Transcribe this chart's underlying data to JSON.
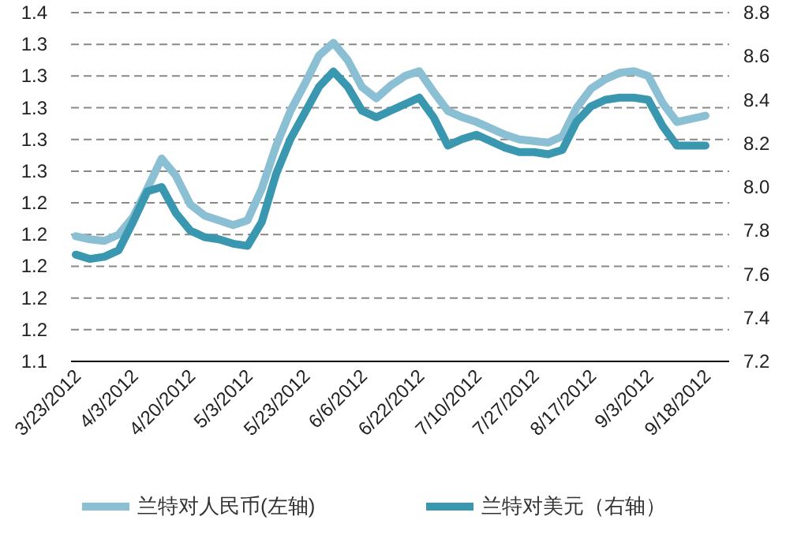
{
  "chart_data": {
    "type": "line",
    "categories": [
      "3/23/2012",
      null,
      null,
      null,
      "4/3/2012",
      null,
      null,
      null,
      "4/20/2012",
      null,
      null,
      null,
      "5/3/2012",
      null,
      null,
      null,
      "5/23/2012",
      null,
      null,
      null,
      "6/6/2012",
      null,
      null,
      null,
      "6/22/2012",
      null,
      null,
      null,
      "7/10/2012",
      null,
      null,
      null,
      "7/27/2012",
      null,
      null,
      null,
      "8/17/2012",
      null,
      null,
      null,
      "9/3/2012",
      null,
      null,
      null,
      "9/18/2012"
    ],
    "series": [
      {
        "name": "兰特对人民币(左轴)",
        "color": "#8bbfd3",
        "values": [
          1.219,
          1.217,
          1.216,
          1.22,
          1.231,
          1.249,
          1.268,
          1.257,
          1.239,
          1.232,
          1.229,
          1.226,
          1.229,
          1.249,
          1.276,
          1.298,
          1.315,
          1.333,
          1.341,
          1.33,
          1.313,
          1.306,
          1.314,
          1.32,
          1.323,
          1.31,
          1.298,
          1.294,
          1.291,
          1.287,
          1.283,
          1.28,
          1.279,
          1.278,
          1.282,
          1.3,
          1.312,
          1.318,
          1.322,
          1.323,
          1.32,
          1.303,
          1.291,
          1.293,
          1.295
        ]
      },
      {
        "name": "兰特对美元（右轴）",
        "color": "#3a97b0",
        "axis": "y2",
        "values": [
          7.69,
          7.67,
          7.68,
          7.71,
          7.84,
          7.98,
          8.0,
          7.88,
          7.8,
          7.77,
          7.76,
          7.74,
          7.73,
          7.84,
          8.06,
          8.22,
          8.34,
          8.46,
          8.53,
          8.46,
          8.35,
          8.32,
          8.35,
          8.38,
          8.41,
          8.32,
          8.19,
          8.22,
          8.24,
          8.21,
          8.18,
          8.16,
          8.16,
          8.15,
          8.17,
          8.3,
          8.37,
          8.4,
          8.41,
          8.41,
          8.4,
          8.28,
          8.19,
          8.19,
          8.19
        ]
      }
    ],
    "ylim": [
      1.14,
      1.36
    ],
    "yticks": [
      {
        "value": 1.14,
        "label": "1.1"
      },
      {
        "value": 1.16,
        "label": "1.2"
      },
      {
        "value": 1.18,
        "label": "1.2"
      },
      {
        "value": 1.2,
        "label": "1.2"
      },
      {
        "value": 1.22,
        "label": "1.2"
      },
      {
        "value": 1.24,
        "label": "1.2"
      },
      {
        "value": 1.26,
        "label": "1.3"
      },
      {
        "value": 1.28,
        "label": "1.3"
      },
      {
        "value": 1.3,
        "label": "1.3"
      },
      {
        "value": 1.32,
        "label": "1.3"
      },
      {
        "value": 1.34,
        "label": "1.3"
      },
      {
        "value": 1.36,
        "label": "1.4"
      }
    ],
    "y2lim": [
      7.2,
      8.8
    ],
    "y2ticks": [
      7.2,
      7.4,
      7.6,
      7.8,
      {
        "value": 8,
        "label": "8.0"
      },
      8.2,
      8.4,
      8.6,
      8.8
    ],
    "grid": "y",
    "legend": "bottom",
    "marker": "none",
    "line_style": "solid"
  }
}
